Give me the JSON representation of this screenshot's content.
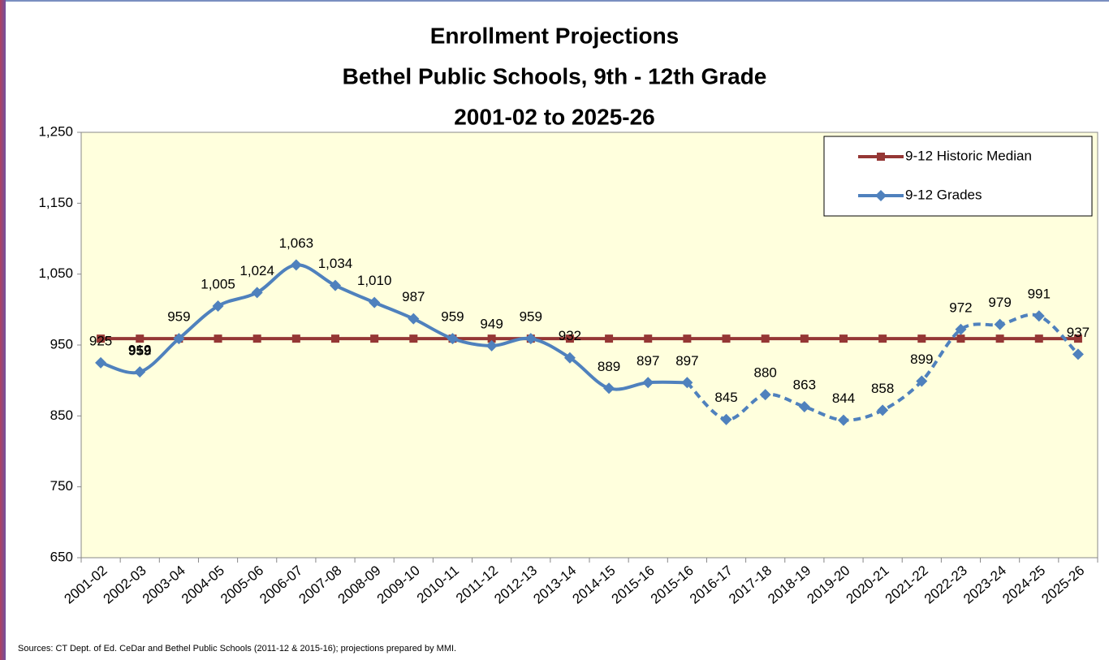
{
  "chart_data": {
    "type": "line",
    "title": [
      "Enrollment Projections",
      "Bethel Public Schools, 9th - 12th Grade",
      "2001-02 to 2025-26"
    ],
    "source": "Sources: CT Dept. of Ed. CeDar and Bethel Public Schools (2011-12 & 2015-16); projections prepared by MMI.",
    "categories": [
      "2001-02",
      "2002-03",
      "2003-04",
      "2004-05",
      "2005-06",
      "2006-07",
      "2007-08",
      "2008-09",
      "2009-10",
      "2010-11",
      "2011-12",
      "2012-13",
      "2013-14",
      "2014-15",
      "2015-16",
      "2015-16",
      "2016-17",
      "2017-18",
      "2018-19",
      "2019-20",
      "2020-21",
      "2021-22",
      "2022-23",
      "2023-24",
      "2024-25",
      "2025-26"
    ],
    "series": [
      {
        "name": "9-12 Historic Median",
        "color": "#953735",
        "marker": "square",
        "values": [
          959,
          959,
          959,
          959,
          959,
          959,
          959,
          959,
          959,
          959,
          959,
          959,
          959,
          959,
          959,
          959,
          959,
          959,
          959,
          959,
          959,
          959,
          959,
          959,
          959,
          959
        ],
        "value_labels": [
          null,
          "959",
          null,
          null,
          null,
          null,
          null,
          null,
          null,
          null,
          null,
          null,
          null,
          null,
          null,
          null,
          null,
          null,
          null,
          null,
          null,
          null,
          null,
          null,
          null,
          null
        ]
      },
      {
        "name": "9-12 Grades",
        "color": "#4f81bd",
        "marker": "diamond",
        "dashed_from_index": 15,
        "values": [
          925,
          912,
          959,
          1005,
          1024,
          1063,
          1034,
          1010,
          987,
          959,
          949,
          959,
          932,
          889,
          897,
          897,
          845,
          880,
          863,
          844,
          858,
          899,
          972,
          979,
          991,
          937
        ],
        "value_labels": [
          "925",
          "912",
          "959",
          "1,005",
          "1,024",
          "1,063",
          "1,034",
          "1,010",
          "987",
          "959",
          "949",
          "959",
          "932",
          "889",
          "897",
          "897",
          "845",
          "880",
          "863",
          "844",
          "858",
          "899",
          "972",
          "979",
          "991",
          "937"
        ]
      }
    ],
    "ylim": [
      650,
      1250
    ],
    "yticks": [
      650,
      750,
      850,
      950,
      {
        "value": 1050,
        "label": "1,050"
      },
      {
        "value": 1150,
        "label": "1,150"
      },
      {
        "value": 1250,
        "label": "1,250"
      }
    ],
    "grid": false,
    "legend": "top-right",
    "plot_background": "#ffffdd"
  }
}
